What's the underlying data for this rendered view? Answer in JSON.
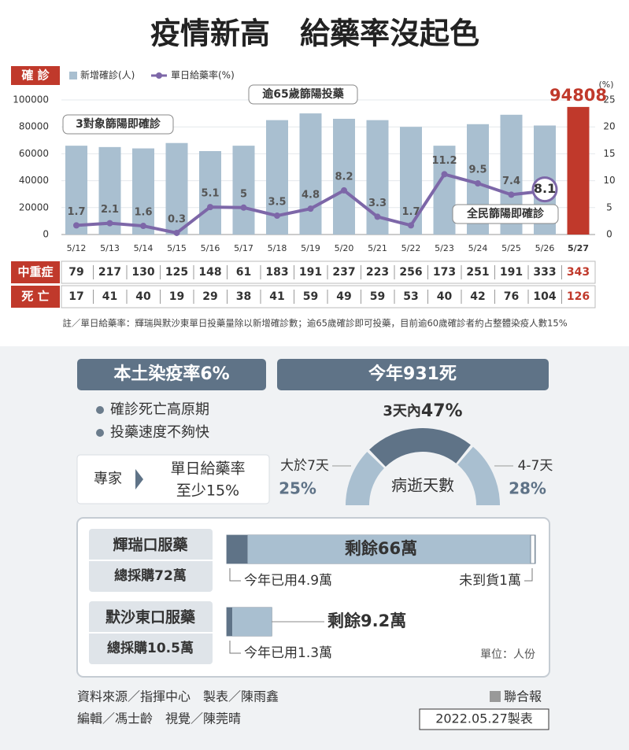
{
  "chart_data": {
    "type": "bar_line",
    "title": "疫情新高　給藥率沒起色",
    "ylabel": "確 診",
    "y2label": "(%)",
    "categories": [
      "5/12",
      "5/13",
      "5/14",
      "5/15",
      "5/16",
      "5/17",
      "5/18",
      "5/19",
      "5/20",
      "5/21",
      "5/22",
      "5/23",
      "5/24",
      "5/25",
      "5/26",
      "5/27"
    ],
    "series": [
      {
        "name": "新增確診(人)",
        "type": "bar",
        "colors": [
          "#a9bfd0",
          "#a9bfd0",
          "#a9bfd0",
          "#a9bfd0",
          "#a9bfd0",
          "#a9bfd0",
          "#a9bfd0",
          "#a9bfd0",
          "#a9bfd0",
          "#a9bfd0",
          "#a9bfd0",
          "#a9bfd0",
          "#a9bfd0",
          "#a9bfd0",
          "#a9bfd0",
          "#c0392b"
        ],
        "values": [
          66000,
          65000,
          64000,
          68000,
          62000,
          66000,
          85000,
          90000,
          86000,
          85000,
          80000,
          66000,
          82000,
          89000,
          81000,
          94808
        ],
        "value_labels": [
          null,
          null,
          null,
          null,
          null,
          null,
          null,
          null,
          null,
          null,
          null,
          null,
          null,
          null,
          null,
          "94808"
        ]
      },
      {
        "name": "單日給藥率(%)",
        "type": "line",
        "axis": "y2",
        "color": "#7d67a8",
        "values": [
          1.7,
          2.1,
          1.6,
          0.3,
          5.1,
          5.0,
          3.5,
          4.8,
          8.2,
          3.3,
          1.7,
          11.2,
          9.5,
          7.4,
          8.1,
          null
        ]
      }
    ],
    "ylim": [
      0,
      100000
    ],
    "yticks": [
      0,
      20000,
      40000,
      60000,
      80000,
      100000
    ],
    "y2lim": [
      0,
      25
    ],
    "y2ticks": [
      0,
      5,
      10,
      15,
      20,
      25
    ],
    "grid": true,
    "annotations": [
      "3對象篩陽即確診",
      "逾65歲篩陽投藥",
      "全民篩陽即確診"
    ],
    "table": {
      "rows": [
        {
          "label": "中重症",
          "values": [
            79,
            217,
            130,
            125,
            148,
            61,
            183,
            191,
            237,
            223,
            256,
            173,
            251,
            191,
            333,
            343
          ]
        },
        {
          "label": "死 亡",
          "values": [
            17,
            41,
            40,
            19,
            29,
            38,
            41,
            59,
            49,
            59,
            53,
            40,
            42,
            76,
            104,
            126
          ]
        }
      ]
    },
    "note": "註／單日給藥率：輝瑞與默沙東單日投藥量除以新增確診數；逾65歲確診即可投藥，目前逾60歲確診者約占整體染疫人數15%"
  },
  "infection": {
    "title": "本土染疫率6%",
    "bullets": [
      "確診死亡高原期",
      "投藥速度不夠快"
    ],
    "expert": "專家",
    "expert_lines": [
      "單日給藥率",
      "至少15%"
    ]
  },
  "deaths": {
    "title": "今年931死",
    "gauge_title": "病逝天數",
    "segments": [
      {
        "label": "大於7天",
        "value": 25,
        "value_label": "25%"
      },
      {
        "label": "3天內",
        "value": 47,
        "value_label": "47%"
      },
      {
        "label": "4-7天",
        "value": 28,
        "value_label": "28%"
      }
    ]
  },
  "drugs": [
    {
      "name": "輝瑞口服藥",
      "total_label": "總採購72萬",
      "total": 72,
      "used_label": "今年已用4.9萬",
      "used": 4.9,
      "remaining_label": "剩餘66萬",
      "remaining": 66,
      "undelivered_label": "未到貨1萬",
      "undelivered": 1
    },
    {
      "name": "默沙東口服藥",
      "total_label": "總採購10.5萬",
      "total": 10.5,
      "used_label": "今年已用1.3萬",
      "used": 1.3,
      "remaining_label": "剩餘9.2萬",
      "remaining": 9.2
    }
  ],
  "unit": "單位：人份",
  "footer": {
    "credits": [
      "資料來源／指揮中心　製表／陳雨鑫",
      "編輯／馮士齡　視覺／陳莞晴"
    ],
    "publisher": "聯合報",
    "date": "2022.05.27製表"
  }
}
